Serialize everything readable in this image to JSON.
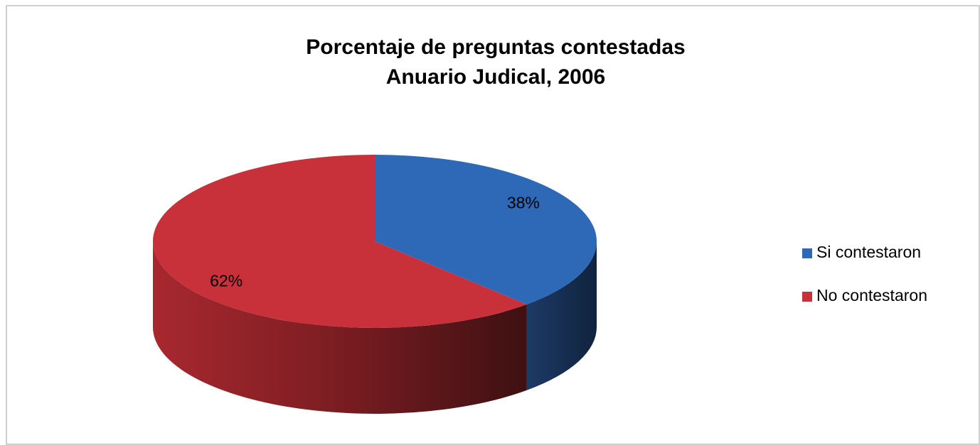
{
  "chart_data": {
    "type": "pie3d",
    "title": [
      "Porcentaje de preguntas contestadas",
      "Anuario Judical, 2006"
    ],
    "categories": [
      "Si contestaron",
      "No contestaron"
    ],
    "values": [
      38,
      62
    ],
    "value_labels": [
      "38%",
      "62%"
    ],
    "colors": [
      "#2d69b6",
      "#c8303a"
    ],
    "legend": "right"
  }
}
